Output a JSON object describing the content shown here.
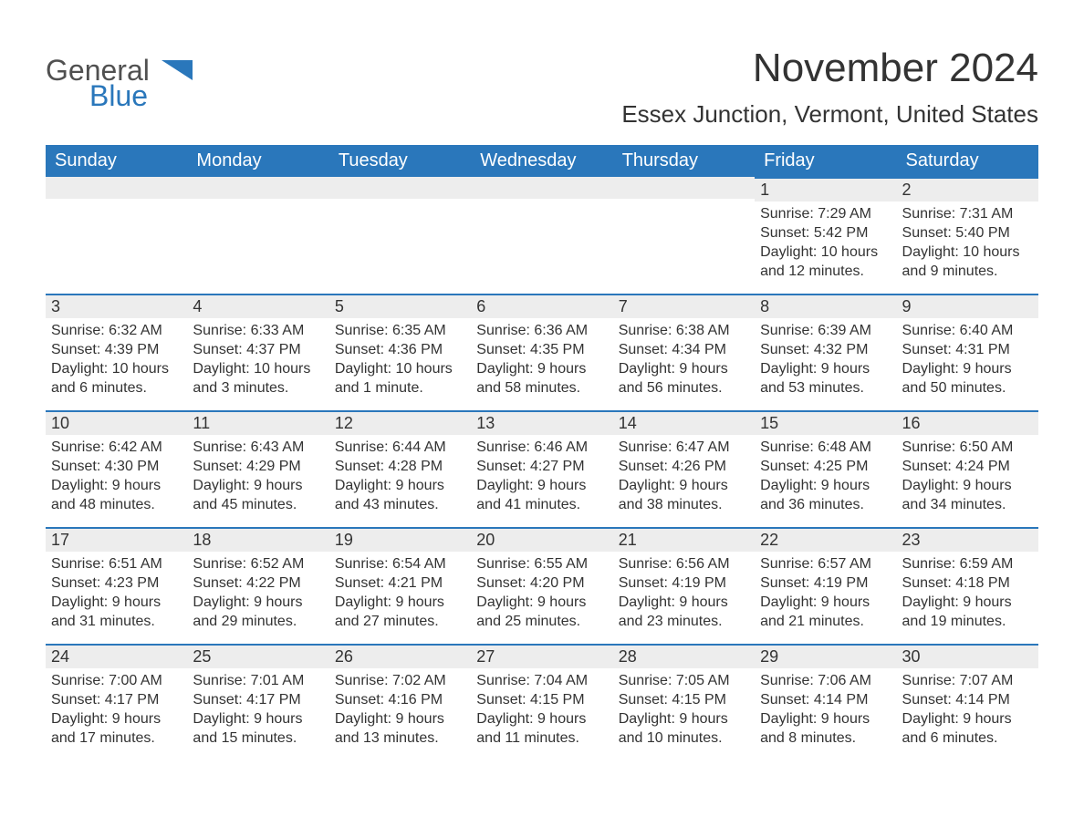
{
  "brand": {
    "part1": "General",
    "part2": "Blue",
    "shape_color": "#2a77bb",
    "text_gray": "#505050"
  },
  "title": "November 2024",
  "location": "Essex Junction, Vermont, United States",
  "colors": {
    "header_bg": "#2a77bb",
    "header_text": "#ffffff",
    "row_stripe": "#ededed",
    "row_border": "#2a77bb",
    "body_text": "#333333",
    "background": "#ffffff"
  },
  "weekday_headers": [
    "Sunday",
    "Monday",
    "Tuesday",
    "Wednesday",
    "Thursday",
    "Friday",
    "Saturday"
  ],
  "weeks": [
    [
      {
        "empty": true
      },
      {
        "empty": true
      },
      {
        "empty": true
      },
      {
        "empty": true
      },
      {
        "empty": true
      },
      {
        "day": "1",
        "sunrise": "Sunrise: 7:29 AM",
        "sunset": "Sunset: 5:42 PM",
        "daylight1": "Daylight: 10 hours",
        "daylight2": "and 12 minutes."
      },
      {
        "day": "2",
        "sunrise": "Sunrise: 7:31 AM",
        "sunset": "Sunset: 5:40 PM",
        "daylight1": "Daylight: 10 hours",
        "daylight2": "and 9 minutes."
      }
    ],
    [
      {
        "day": "3",
        "sunrise": "Sunrise: 6:32 AM",
        "sunset": "Sunset: 4:39 PM",
        "daylight1": "Daylight: 10 hours",
        "daylight2": "and 6 minutes."
      },
      {
        "day": "4",
        "sunrise": "Sunrise: 6:33 AM",
        "sunset": "Sunset: 4:37 PM",
        "daylight1": "Daylight: 10 hours",
        "daylight2": "and 3 minutes."
      },
      {
        "day": "5",
        "sunrise": "Sunrise: 6:35 AM",
        "sunset": "Sunset: 4:36 PM",
        "daylight1": "Daylight: 10 hours",
        "daylight2": "and 1 minute."
      },
      {
        "day": "6",
        "sunrise": "Sunrise: 6:36 AM",
        "sunset": "Sunset: 4:35 PM",
        "daylight1": "Daylight: 9 hours",
        "daylight2": "and 58 minutes."
      },
      {
        "day": "7",
        "sunrise": "Sunrise: 6:38 AM",
        "sunset": "Sunset: 4:34 PM",
        "daylight1": "Daylight: 9 hours",
        "daylight2": "and 56 minutes."
      },
      {
        "day": "8",
        "sunrise": "Sunrise: 6:39 AM",
        "sunset": "Sunset: 4:32 PM",
        "daylight1": "Daylight: 9 hours",
        "daylight2": "and 53 minutes."
      },
      {
        "day": "9",
        "sunrise": "Sunrise: 6:40 AM",
        "sunset": "Sunset: 4:31 PM",
        "daylight1": "Daylight: 9 hours",
        "daylight2": "and 50 minutes."
      }
    ],
    [
      {
        "day": "10",
        "sunrise": "Sunrise: 6:42 AM",
        "sunset": "Sunset: 4:30 PM",
        "daylight1": "Daylight: 9 hours",
        "daylight2": "and 48 minutes."
      },
      {
        "day": "11",
        "sunrise": "Sunrise: 6:43 AM",
        "sunset": "Sunset: 4:29 PM",
        "daylight1": "Daylight: 9 hours",
        "daylight2": "and 45 minutes."
      },
      {
        "day": "12",
        "sunrise": "Sunrise: 6:44 AM",
        "sunset": "Sunset: 4:28 PM",
        "daylight1": "Daylight: 9 hours",
        "daylight2": "and 43 minutes."
      },
      {
        "day": "13",
        "sunrise": "Sunrise: 6:46 AM",
        "sunset": "Sunset: 4:27 PM",
        "daylight1": "Daylight: 9 hours",
        "daylight2": "and 41 minutes."
      },
      {
        "day": "14",
        "sunrise": "Sunrise: 6:47 AM",
        "sunset": "Sunset: 4:26 PM",
        "daylight1": "Daylight: 9 hours",
        "daylight2": "and 38 minutes."
      },
      {
        "day": "15",
        "sunrise": "Sunrise: 6:48 AM",
        "sunset": "Sunset: 4:25 PM",
        "daylight1": "Daylight: 9 hours",
        "daylight2": "and 36 minutes."
      },
      {
        "day": "16",
        "sunrise": "Sunrise: 6:50 AM",
        "sunset": "Sunset: 4:24 PM",
        "daylight1": "Daylight: 9 hours",
        "daylight2": "and 34 minutes."
      }
    ],
    [
      {
        "day": "17",
        "sunrise": "Sunrise: 6:51 AM",
        "sunset": "Sunset: 4:23 PM",
        "daylight1": "Daylight: 9 hours",
        "daylight2": "and 31 minutes."
      },
      {
        "day": "18",
        "sunrise": "Sunrise: 6:52 AM",
        "sunset": "Sunset: 4:22 PM",
        "daylight1": "Daylight: 9 hours",
        "daylight2": "and 29 minutes."
      },
      {
        "day": "19",
        "sunrise": "Sunrise: 6:54 AM",
        "sunset": "Sunset: 4:21 PM",
        "daylight1": "Daylight: 9 hours",
        "daylight2": "and 27 minutes."
      },
      {
        "day": "20",
        "sunrise": "Sunrise: 6:55 AM",
        "sunset": "Sunset: 4:20 PM",
        "daylight1": "Daylight: 9 hours",
        "daylight2": "and 25 minutes."
      },
      {
        "day": "21",
        "sunrise": "Sunrise: 6:56 AM",
        "sunset": "Sunset: 4:19 PM",
        "daylight1": "Daylight: 9 hours",
        "daylight2": "and 23 minutes."
      },
      {
        "day": "22",
        "sunrise": "Sunrise: 6:57 AM",
        "sunset": "Sunset: 4:19 PM",
        "daylight1": "Daylight: 9 hours",
        "daylight2": "and 21 minutes."
      },
      {
        "day": "23",
        "sunrise": "Sunrise: 6:59 AM",
        "sunset": "Sunset: 4:18 PM",
        "daylight1": "Daylight: 9 hours",
        "daylight2": "and 19 minutes."
      }
    ],
    [
      {
        "day": "24",
        "sunrise": "Sunrise: 7:00 AM",
        "sunset": "Sunset: 4:17 PM",
        "daylight1": "Daylight: 9 hours",
        "daylight2": "and 17 minutes."
      },
      {
        "day": "25",
        "sunrise": "Sunrise: 7:01 AM",
        "sunset": "Sunset: 4:17 PM",
        "daylight1": "Daylight: 9 hours",
        "daylight2": "and 15 minutes."
      },
      {
        "day": "26",
        "sunrise": "Sunrise: 7:02 AM",
        "sunset": "Sunset: 4:16 PM",
        "daylight1": "Daylight: 9 hours",
        "daylight2": "and 13 minutes."
      },
      {
        "day": "27",
        "sunrise": "Sunrise: 7:04 AM",
        "sunset": "Sunset: 4:15 PM",
        "daylight1": "Daylight: 9 hours",
        "daylight2": "and 11 minutes."
      },
      {
        "day": "28",
        "sunrise": "Sunrise: 7:05 AM",
        "sunset": "Sunset: 4:15 PM",
        "daylight1": "Daylight: 9 hours",
        "daylight2": "and 10 minutes."
      },
      {
        "day": "29",
        "sunrise": "Sunrise: 7:06 AM",
        "sunset": "Sunset: 4:14 PM",
        "daylight1": "Daylight: 9 hours",
        "daylight2": "and 8 minutes."
      },
      {
        "day": "30",
        "sunrise": "Sunrise: 7:07 AM",
        "sunset": "Sunset: 4:14 PM",
        "daylight1": "Daylight: 9 hours",
        "daylight2": "and 6 minutes."
      }
    ]
  ]
}
